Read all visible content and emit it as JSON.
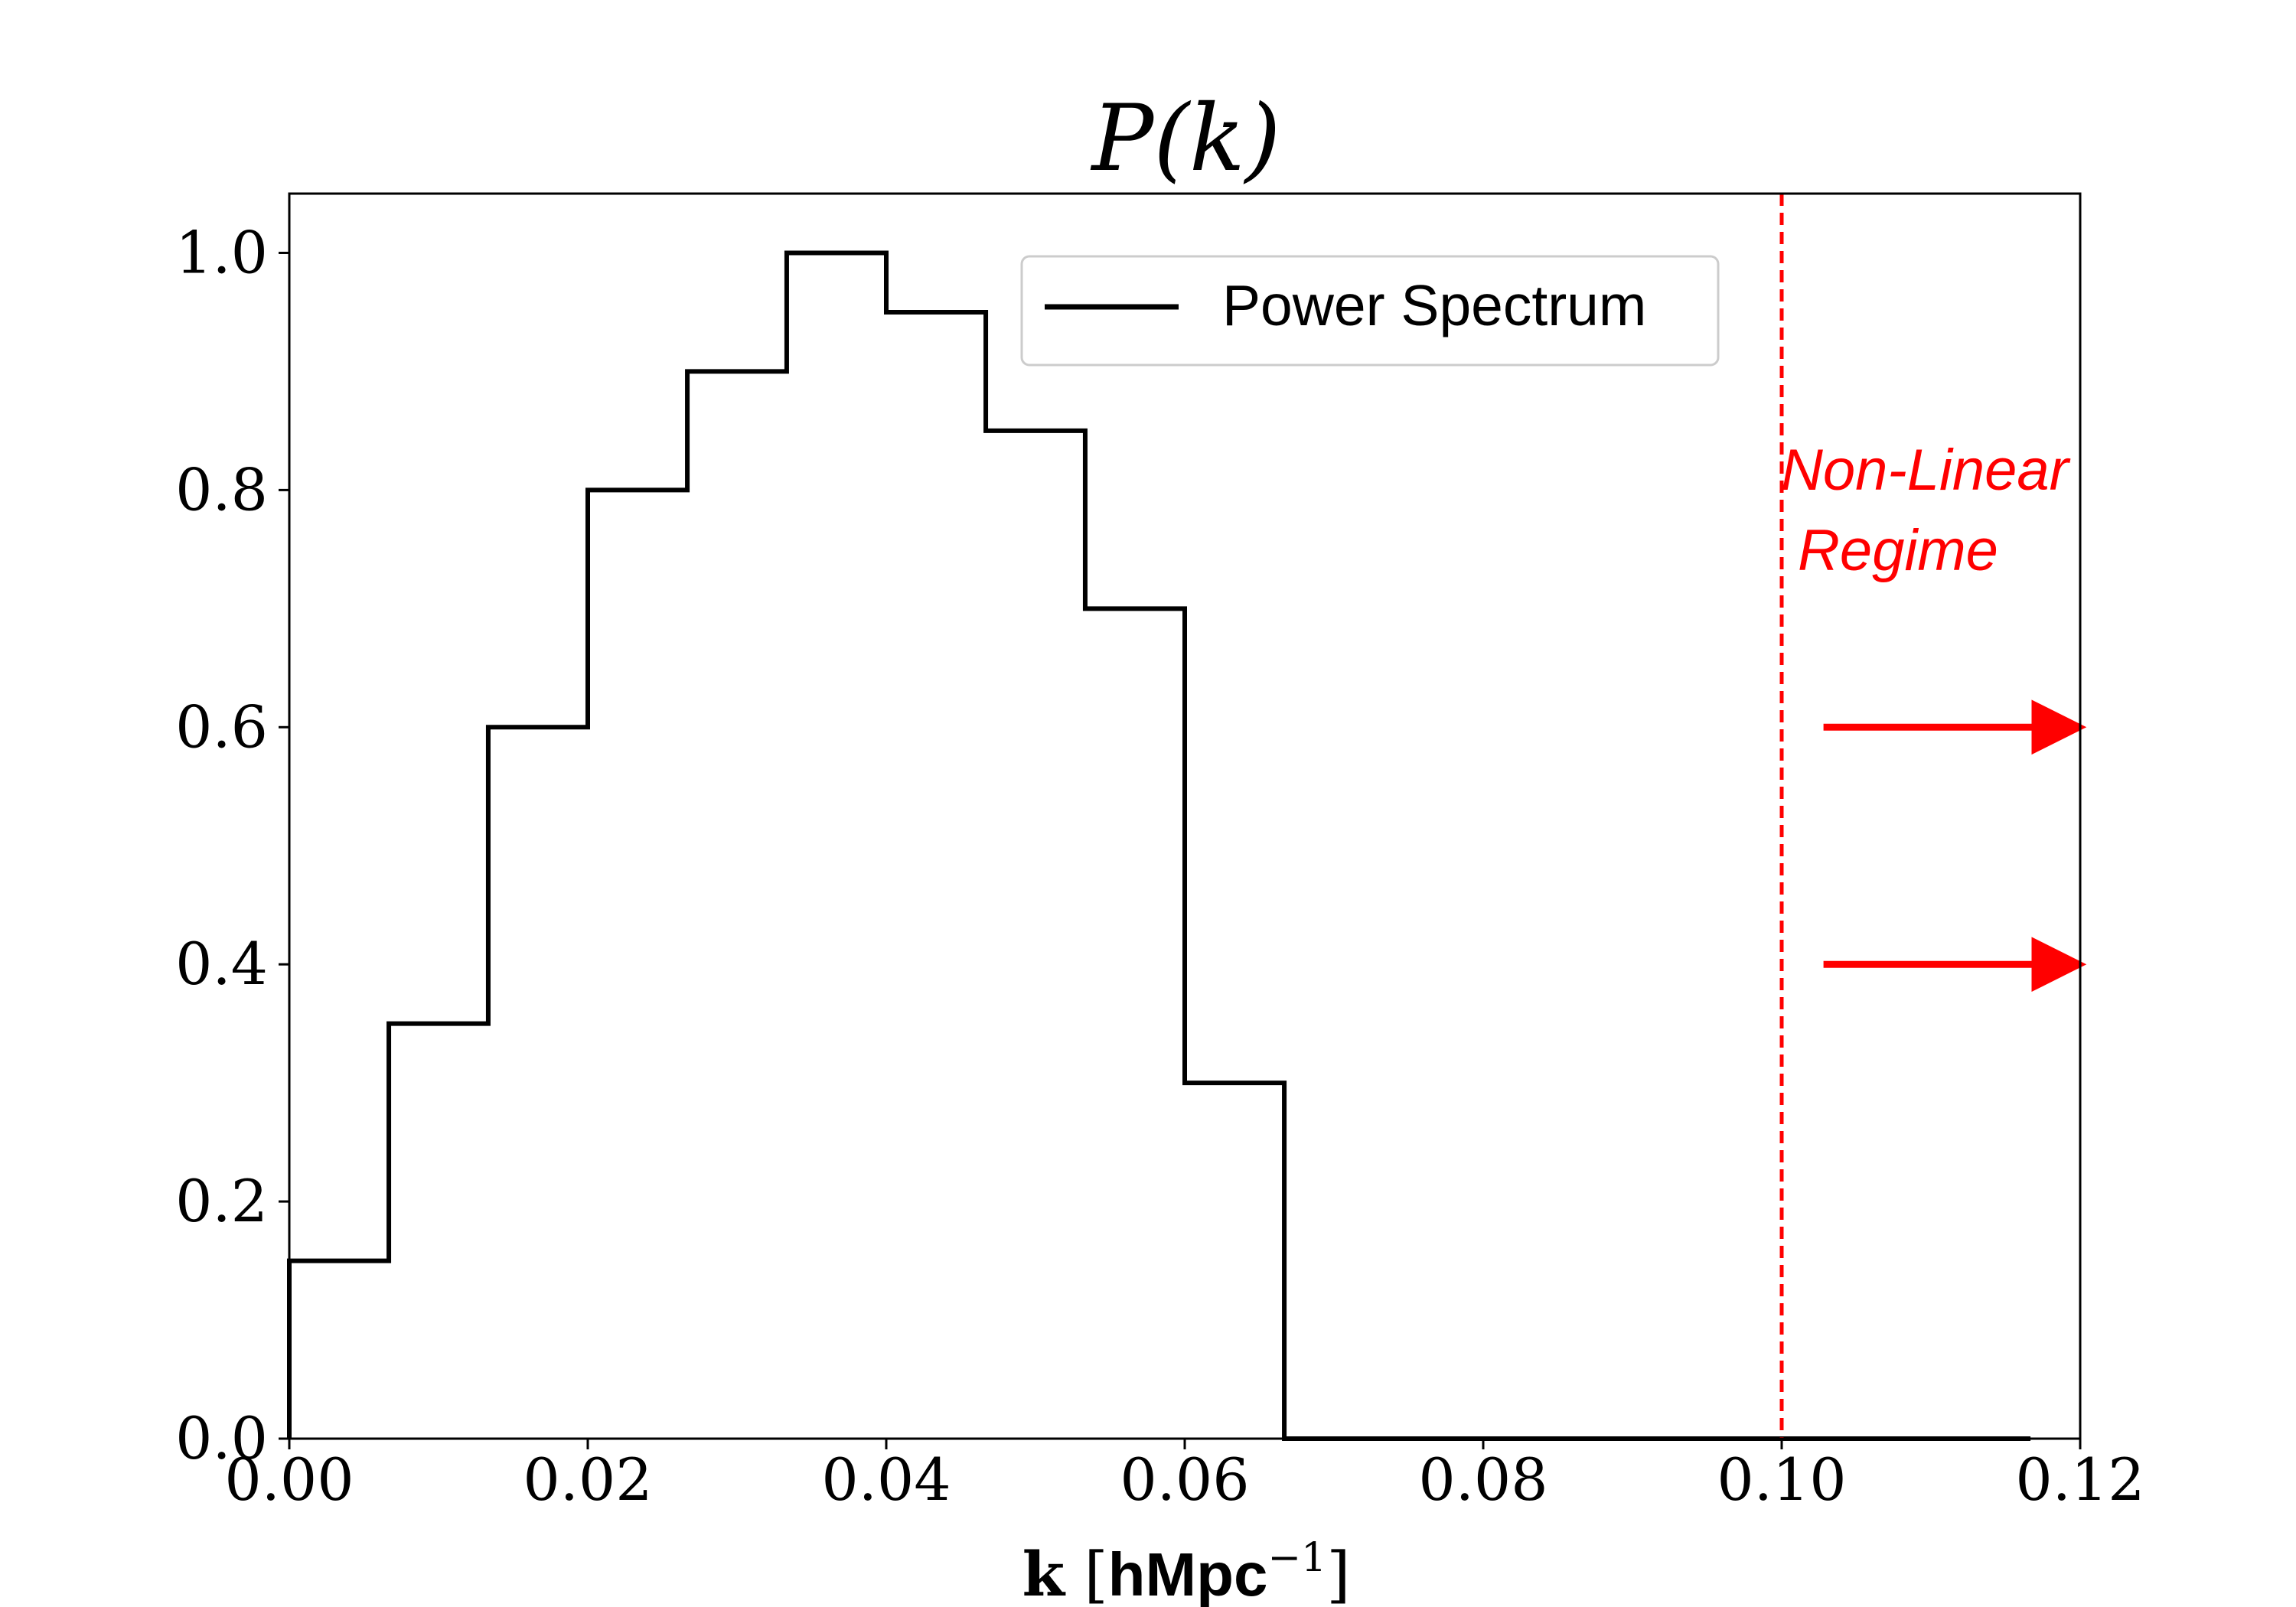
{
  "chart_data": {
    "type": "line",
    "title": "P(k)",
    "xlabel": {
      "bold_k": "k",
      "unit_main": "hMpc",
      "unit_exp": "−1"
    },
    "ylabel": "",
    "xlim": [
      0.0,
      0.12
    ],
    "ylim": [
      0.0,
      1.05
    ],
    "xticks": [
      0.0,
      0.02,
      0.04,
      0.06,
      0.08,
      0.1,
      0.12
    ],
    "xtick_labels": [
      "0.00",
      "0.02",
      "0.04",
      "0.06",
      "0.08",
      "0.10",
      "0.12"
    ],
    "yticks": [
      0.0,
      0.2,
      0.4,
      0.6,
      0.8,
      1.0
    ],
    "ytick_labels": [
      "0.0",
      "0.2",
      "0.4",
      "0.6",
      "0.8",
      "1.0"
    ],
    "grid": false,
    "legend_position": "top-center",
    "series": [
      {
        "name": "Power Spectrum",
        "color": "#000000",
        "drawstyle": "steps-post",
        "x": [
          0.0,
          0.00667,
          0.01333,
          0.02,
          0.02667,
          0.03333,
          0.04,
          0.04667,
          0.05333,
          0.06,
          0.06667,
          0.11667
        ],
        "y": [
          0.15,
          0.35,
          0.6,
          0.8,
          0.9,
          1.0,
          0.95,
          0.85,
          0.7,
          0.3,
          0.0,
          0.0
        ]
      }
    ],
    "vline": {
      "x": 0.1,
      "color": "#ff0000",
      "style": "dashed"
    },
    "annotation": {
      "lines": [
        "Non-Linear",
        "Regime"
      ],
      "color": "#ff0000",
      "arrows": [
        {
          "y": 0.6,
          "x_start": 0.1028,
          "x_end": 0.1195
        },
        {
          "y": 0.4,
          "x_start": 0.1028,
          "x_end": 0.1195
        }
      ]
    }
  }
}
